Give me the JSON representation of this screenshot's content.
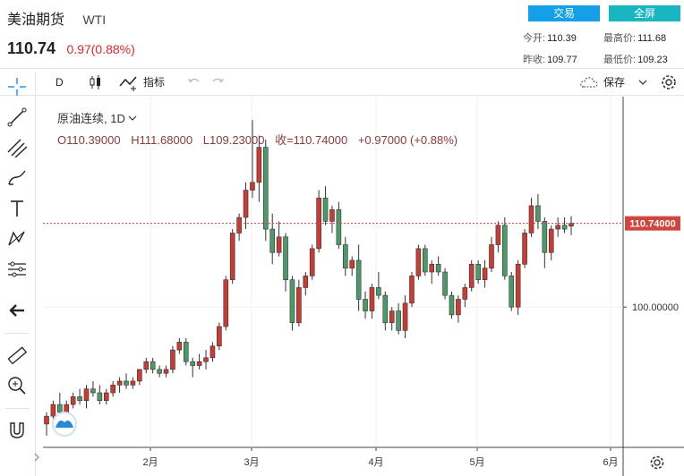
{
  "header": {
    "name": "美油期货",
    "code": "WTI",
    "last_price": "110.74",
    "change": "0.97(0.88%)",
    "trade_button": "交易",
    "fullscreen_button": "全屏",
    "stats": {
      "open_label": "今开:",
      "open": "110.39",
      "high_label": "最高价:",
      "high": "111.68",
      "prev_label": "昨收:",
      "prev": "109.77",
      "low_label": "最低价:",
      "low": "109.23"
    }
  },
  "toolbar": {
    "interval": "D",
    "indicator_label": "指标",
    "save_label": "保存"
  },
  "legend": {
    "symbol": "原油连续, 1D",
    "open": "O110.39000",
    "high": "H111.68000",
    "low": "L109.23000",
    "close": "收=110.74000",
    "change": "+0.97000 (+0.88%)"
  },
  "colors": {
    "up": "#e0262c",
    "candle_up": "#c93b33",
    "candle_down": "#4c9a6a",
    "accent": "#13a0e8"
  },
  "chart_data": {
    "type": "candlestick",
    "title": "",
    "x_ticks": [
      "2月",
      "3月",
      "4月",
      "5月",
      "6月"
    ],
    "y_ticks": [
      "100.00000"
    ],
    "last_price_label": "110.74000",
    "ylim": [
      82,
      127
    ],
    "candles": [
      [
        85.0,
        86.5,
        83.5,
        86.0
      ],
      [
        86.0,
        88.0,
        85.5,
        87.5
      ],
      [
        87.5,
        89.0,
        86.0,
        86.5
      ],
      [
        86.5,
        88.0,
        86.0,
        87.5
      ],
      [
        87.5,
        89.0,
        87.0,
        88.5
      ],
      [
        88.5,
        89.5,
        87.5,
        88.0
      ],
      [
        88.0,
        90.0,
        87.0,
        89.5
      ],
      [
        89.5,
        90.5,
        88.5,
        89.0
      ],
      [
        89.0,
        90.0,
        87.5,
        88.0
      ],
      [
        88.0,
        89.5,
        87.5,
        89.0
      ],
      [
        89.0,
        90.5,
        88.5,
        90.0
      ],
      [
        90.0,
        91.0,
        89.0,
        90.5
      ],
      [
        90.5,
        91.5,
        89.5,
        90.0
      ],
      [
        90.0,
        91.0,
        89.5,
        90.5
      ],
      [
        90.5,
        92.0,
        90.0,
        92.0
      ],
      [
        92.0,
        93.5,
        91.5,
        93.0
      ],
      [
        93.0,
        93.5,
        91.5,
        92.0
      ],
      [
        92.0,
        92.5,
        91.0,
        91.5
      ],
      [
        91.5,
        92.5,
        91.0,
        92.0
      ],
      [
        92.0,
        95.0,
        91.5,
        94.5
      ],
      [
        94.5,
        96.0,
        94.0,
        95.5
      ],
      [
        95.5,
        96.0,
        92.5,
        93.0
      ],
      [
        93.0,
        93.5,
        91.0,
        92.5
      ],
      [
        92.5,
        94.0,
        92.0,
        93.0
      ],
      [
        93.0,
        94.5,
        92.0,
        93.5
      ],
      [
        93.5,
        95.5,
        93.0,
        95.0
      ],
      [
        95.0,
        98.0,
        94.5,
        97.5
      ],
      [
        97.5,
        104.0,
        97.0,
        103.5
      ],
      [
        103.5,
        110.0,
        103.0,
        109.5
      ],
      [
        109.5,
        112.0,
        108.5,
        111.5
      ],
      [
        111.5,
        116.0,
        110.0,
        115.0
      ],
      [
        115.0,
        124.0,
        114.0,
        116.0
      ],
      [
        116.0,
        122.0,
        113.5,
        120.5
      ],
      [
        120.5,
        121.5,
        108.5,
        110.0
      ],
      [
        110.0,
        112.0,
        105.5,
        107.0
      ],
      [
        107.0,
        111.0,
        106.5,
        109.0
      ],
      [
        109.0,
        109.5,
        102.0,
        103.5
      ],
      [
        103.5,
        104.0,
        97.0,
        98.0
      ],
      [
        98.0,
        103.5,
        97.5,
        102.5
      ],
      [
        102.5,
        104.5,
        101.5,
        104.0
      ],
      [
        104.0,
        108.0,
        103.5,
        107.5
      ],
      [
        107.5,
        115.0,
        107.0,
        114.0
      ],
      [
        114.0,
        115.5,
        110.5,
        111.0
      ],
      [
        111.0,
        113.0,
        109.5,
        112.5
      ],
      [
        112.5,
        113.5,
        107.5,
        108.0
      ],
      [
        108.0,
        109.0,
        104.0,
        105.0
      ],
      [
        105.0,
        106.5,
        104.0,
        106.0
      ],
      [
        106.0,
        108.0,
        99.5,
        101.0
      ],
      [
        101.0,
        102.0,
        98.5,
        99.5
      ],
      [
        99.5,
        103.0,
        98.5,
        102.5
      ],
      [
        102.5,
        104.5,
        101.0,
        101.5
      ],
      [
        101.5,
        102.0,
        97.0,
        98.0
      ],
      [
        98.0,
        100.0,
        97.0,
        99.5
      ],
      [
        99.5,
        100.5,
        96.5,
        97.0
      ],
      [
        97.0,
        101.5,
        96.0,
        100.5
      ],
      [
        100.5,
        104.5,
        100.0,
        104.0
      ],
      [
        104.0,
        108.0,
        103.5,
        107.5
      ],
      [
        107.5,
        108.0,
        104.0,
        104.5
      ],
      [
        104.5,
        106.0,
        103.0,
        105.5
      ],
      [
        105.5,
        106.5,
        104.0,
        104.5
      ],
      [
        104.5,
        105.0,
        101.0,
        101.5
      ],
      [
        101.5,
        102.0,
        98.5,
        99.0
      ],
      [
        99.0,
        101.5,
        98.0,
        101.0
      ],
      [
        101.0,
        103.0,
        100.0,
        102.5
      ],
      [
        102.5,
        106.0,
        102.0,
        105.5
      ],
      [
        105.5,
        106.0,
        103.0,
        103.5
      ],
      [
        103.5,
        106.0,
        102.5,
        105.0
      ],
      [
        105.0,
        109.0,
        104.5,
        108.0
      ],
      [
        108.0,
        111.0,
        107.0,
        110.5
      ],
      [
        110.5,
        111.5,
        103.5,
        104.0
      ],
      [
        104.0,
        104.5,
        99.5,
        100.0
      ],
      [
        100.0,
        106.0,
        99.0,
        105.5
      ],
      [
        105.5,
        110.0,
        105.0,
        109.5
      ],
      [
        109.5,
        114.0,
        109.0,
        113.0
      ],
      [
        113.0,
        114.5,
        110.0,
        111.0
      ],
      [
        111.0,
        111.5,
        105.0,
        107.0
      ],
      [
        107.0,
        110.5,
        106.0,
        110.0
      ],
      [
        110.0,
        111.5,
        109.0,
        110.5
      ],
      [
        110.5,
        111.5,
        109.5,
        110.0
      ],
      [
        110.39,
        111.68,
        109.23,
        110.74
      ]
    ]
  }
}
